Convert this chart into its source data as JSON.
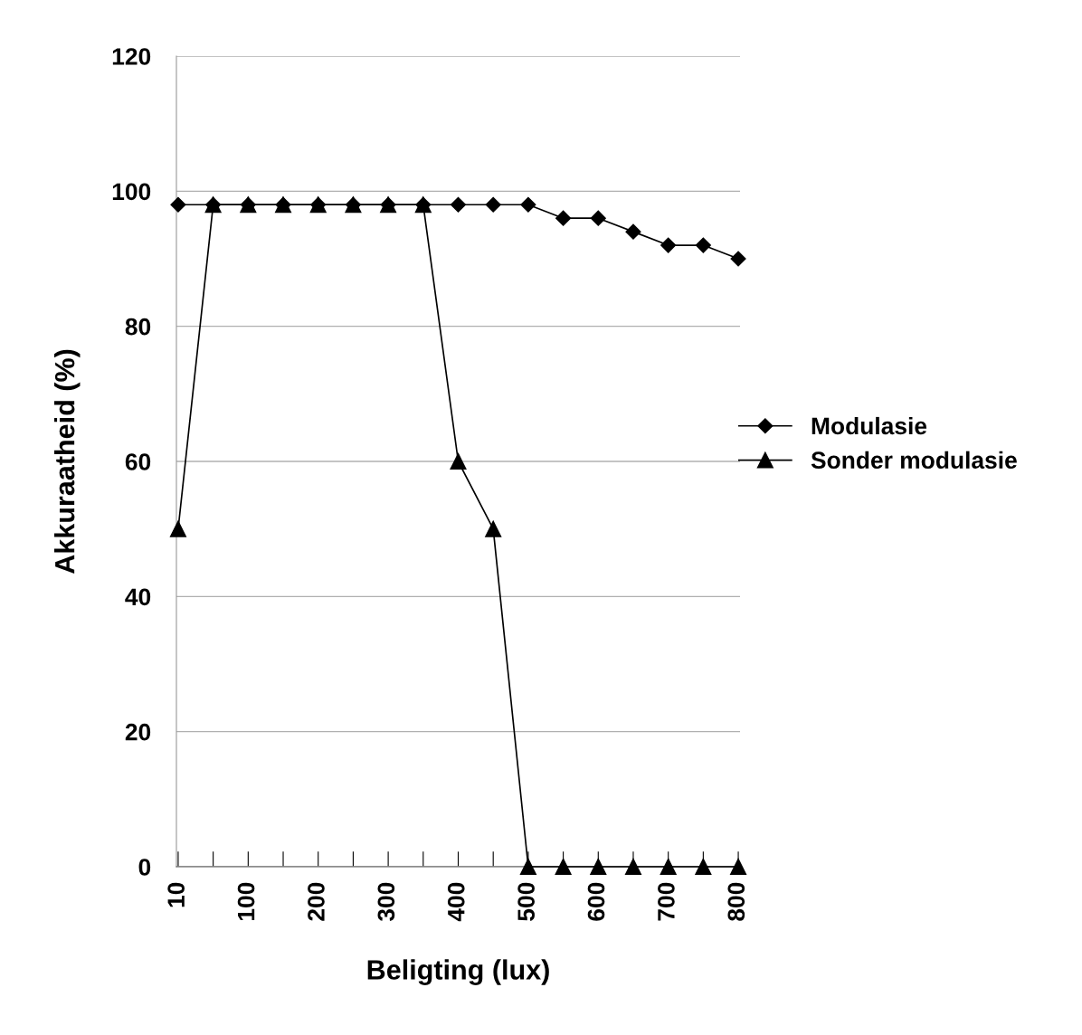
{
  "chart_data": {
    "type": "line",
    "xlabel": "Beligting (lux)",
    "ylabel": "Akkuraatheid (%)",
    "categories": [
      "10",
      null,
      "100",
      null,
      "200",
      null,
      "300",
      null,
      "400",
      null,
      "500",
      null,
      "600",
      null,
      "700",
      null,
      "800"
    ],
    "series": [
      {
        "name": "Modulasie",
        "color": "#000000",
        "marker": "diamond",
        "values": [
          98,
          98,
          98,
          98,
          98,
          98,
          98,
          98,
          98,
          98,
          98,
          96,
          96,
          94,
          92,
          92,
          90
        ]
      },
      {
        "name": "Sonder modulasie",
        "color": "#000000",
        "marker": "triangle",
        "values": [
          50,
          98,
          98,
          98,
          98,
          98,
          98,
          98,
          60,
          50,
          0,
          0,
          0,
          0,
          0,
          0,
          0
        ]
      }
    ],
    "ylim": [
      0,
      120
    ],
    "yticks": [
      0,
      20,
      40,
      60,
      80,
      100,
      120
    ],
    "grid": "y",
    "legend": "right",
    "line_style": "solid"
  }
}
